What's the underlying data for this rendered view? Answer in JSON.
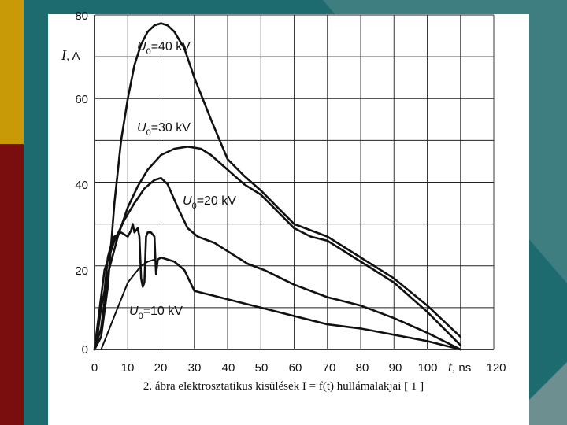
{
  "colors": {
    "background_teal": "#1d6b6f",
    "left_bar_gold": "#c99a08",
    "left_bar_red": "#7a0d0d",
    "panel": "#ffffff",
    "ink": "#111111"
  },
  "caption": "2. ábra elektrosztatikus kisülések I = f(t) hullámalakjai [ 1 ]",
  "chart_data": {
    "type": "line",
    "xlabel": {
      "symbol": "t",
      "unit": ", ns"
    },
    "ylabel": {
      "symbol": "I",
      "unit": ", A"
    },
    "xlim": [
      0,
      120
    ],
    "ylim": [
      0,
      80
    ],
    "grid": true,
    "x_tick_labels": [
      "0",
      "10",
      "20",
      "30",
      "40",
      "50",
      "60",
      "70",
      "80",
      "90",
      "100"
    ],
    "x_tick_last": "120",
    "y_tick_labels": [
      "0",
      "20",
      "40",
      "60",
      "80"
    ],
    "annotations": [
      {
        "text": "=40 kV",
        "symbol": "U",
        "sub": "0"
      },
      {
        "text": "=30 kV",
        "symbol": "U",
        "sub": "0"
      },
      {
        "text": "=20 kV",
        "symbol": "U",
        "sub": "0"
      },
      {
        "text": "=10 kV",
        "symbol": "U",
        "sub": "0"
      }
    ],
    "series": [
      {
        "name": "U0=40 kV",
        "x": [
          0,
          2,
          4,
          6,
          8,
          10,
          12,
          14,
          16,
          18,
          20,
          22,
          24,
          27,
          30,
          35,
          40,
          45,
          50,
          55,
          60,
          65,
          70,
          80,
          90,
          100,
          110
        ],
        "y": [
          0,
          3,
          15,
          35,
          50,
          60,
          68,
          73,
          76,
          77.5,
          78,
          77.5,
          76,
          72,
          65,
          55,
          45.5,
          41.5,
          38,
          34,
          30,
          28.5,
          27,
          22,
          17,
          10.5,
          3
        ]
      },
      {
        "name": "U0=30 kV",
        "x": [
          0,
          2,
          4,
          7,
          10,
          13,
          16,
          20,
          24,
          28,
          32,
          35,
          40,
          45,
          50,
          55,
          60,
          65,
          70,
          80,
          90,
          100,
          110
        ],
        "y": [
          0,
          5,
          18,
          27,
          34,
          39,
          43,
          46.5,
          48,
          48.5,
          48,
          46.5,
          43,
          39.5,
          37,
          33,
          29,
          27,
          26,
          21,
          16,
          9,
          1
        ]
      },
      {
        "name": "U0=20 kV",
        "x": [
          0,
          3,
          6,
          9,
          12,
          15,
          18,
          20,
          22,
          25,
          28,
          31,
          36,
          41,
          46,
          51,
          60,
          70,
          80,
          90,
          100,
          110
        ],
        "y": [
          0,
          19,
          26,
          31,
          35,
          38.5,
          40.5,
          41,
          39.5,
          34,
          29,
          27,
          25.5,
          23,
          20.5,
          19,
          15.5,
          12.5,
          10.5,
          7.5,
          4,
          0
        ]
      },
      {
        "name": "U0=10 kV",
        "x": [
          0,
          1,
          2,
          3,
          4,
          5,
          6,
          8,
          10,
          11,
          11.5,
          12,
          13,
          13.5,
          14,
          14.5,
          15,
          15.5,
          16,
          17,
          18,
          18.5,
          19,
          20,
          22,
          24,
          27,
          30,
          35,
          40,
          50,
          60,
          70,
          80,
          90,
          100,
          110
        ],
        "y": [
          0,
          4,
          10,
          14,
          22,
          25,
          27,
          28,
          27,
          28.5,
          30,
          28,
          29,
          27,
          17,
          15,
          16,
          27,
          28,
          28,
          27,
          18,
          21.5,
          22,
          21.5,
          21,
          19,
          14,
          13,
          12,
          10,
          8,
          6,
          5,
          3.5,
          2,
          0
        ]
      },
      {
        "name": "",
        "x": [
          2,
          3,
          4,
          5,
          6,
          8,
          10,
          12,
          14,
          16,
          18
        ],
        "y": [
          0,
          2,
          4,
          6,
          8,
          12,
          16,
          18,
          20,
          21,
          21.5
        ]
      }
    ]
  }
}
